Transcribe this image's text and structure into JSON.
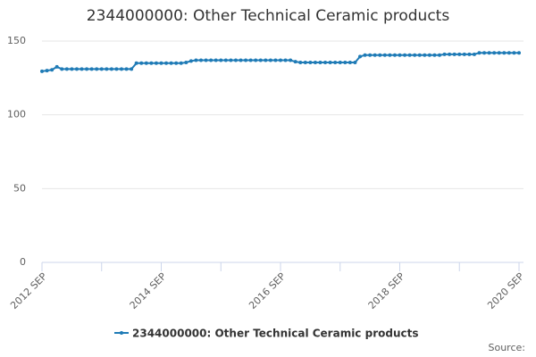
{
  "chart_data": {
    "type": "line",
    "title": "2344000000: Other Technical Ceramic products",
    "categories": [
      "2012 SEP",
      null,
      null,
      null,
      null,
      null,
      null,
      null,
      null,
      null,
      null,
      null,
      null,
      null,
      null,
      null,
      null,
      null,
      null,
      null,
      null,
      null,
      null,
      null,
      "2014 SEP",
      null,
      null,
      null,
      null,
      null,
      null,
      null,
      null,
      null,
      null,
      null,
      null,
      null,
      null,
      null,
      null,
      null,
      null,
      null,
      null,
      null,
      null,
      null,
      "2016 SEP",
      null,
      null,
      null,
      null,
      null,
      null,
      null,
      null,
      null,
      null,
      null,
      null,
      null,
      null,
      null,
      null,
      null,
      null,
      null,
      null,
      null,
      null,
      null,
      "2018 SEP",
      null,
      null,
      null,
      null,
      null,
      null,
      null,
      null,
      null,
      null,
      null,
      null,
      null,
      null,
      null,
      null,
      null,
      null,
      null,
      null,
      null,
      null,
      null,
      "2020 SEP"
    ],
    "series": [
      {
        "name": "2344000000: Other Technical Ceramic products",
        "color": "#1f7bb6",
        "values": [
          129.5,
          130,
          130.5,
          132.5,
          131,
          131,
          131,
          131,
          131,
          131,
          131,
          131,
          131,
          131,
          131,
          131,
          131,
          131,
          131,
          135,
          135,
          135,
          135,
          135,
          135,
          135,
          135,
          135,
          135,
          135.5,
          136.5,
          137,
          137,
          137,
          137,
          137,
          137,
          137,
          137,
          137,
          137,
          137,
          137,
          137,
          137,
          137,
          137,
          137,
          137,
          137,
          137,
          136,
          135.5,
          135.5,
          135.5,
          135.5,
          135.5,
          135.5,
          135.5,
          135.5,
          135.5,
          135.5,
          135.5,
          135.5,
          139.5,
          140.5,
          140.5,
          140.5,
          140.5,
          140.5,
          140.5,
          140.5,
          140.5,
          140.5,
          140.5,
          140.5,
          140.5,
          140.5,
          140.5,
          140.5,
          140.5,
          141,
          141,
          141,
          141,
          141,
          141,
          141,
          142,
          142,
          142,
          142,
          142,
          142,
          142,
          142,
          142
        ]
      }
    ],
    "ylim": [
      0,
      150
    ],
    "yticks": [
      0,
      50,
      100,
      150
    ],
    "grid": true,
    "source": "Source:"
  }
}
